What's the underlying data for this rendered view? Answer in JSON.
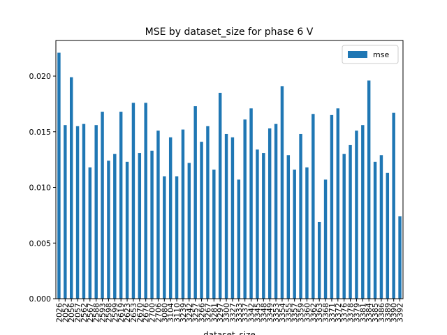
{
  "chart_data": {
    "type": "bar",
    "title": "MSE by dataset_size for phase 6 V",
    "x_label": "dataset_size",
    "categories": [
      "2026",
      "2052",
      "2056",
      "2057",
      "2562",
      "2567",
      "2588",
      "2593",
      "2598",
      "2599",
      "2619",
      "2623",
      "2653",
      "2670",
      "2676",
      "2700",
      "2706",
      "3080",
      "3104",
      "3110",
      "3239",
      "3242",
      "3257",
      "3266",
      "3267",
      "3281",
      "3297",
      "3300",
      "3327",
      "3333",
      "3337",
      "3342",
      "3345",
      "3348",
      "3349",
      "3353",
      "3354",
      "3355",
      "3357",
      "3359",
      "3360",
      "3362",
      "3363",
      "3368",
      "3371",
      "3372",
      "3376",
      "3378",
      "3379",
      "3381",
      "3384",
      "3385",
      "3386",
      "3389",
      "3390",
      "3392"
    ],
    "series": [
      {
        "name": "mse",
        "color": "#1f77b4",
        "values": [
          0.0221,
          0.0156,
          0.0199,
          0.0155,
          0.0157,
          0.0118,
          0.0156,
          0.0168,
          0.0124,
          0.013,
          0.0168,
          0.0123,
          0.0176,
          0.0131,
          0.0176,
          0.0133,
          0.0151,
          0.011,
          0.0145,
          0.011,
          0.0152,
          0.0122,
          0.0173,
          0.0141,
          0.0155,
          0.0116,
          0.0185,
          0.0148,
          0.0145,
          0.0107,
          0.0161,
          0.0171,
          0.0134,
          0.0131,
          0.0153,
          0.0157,
          0.0191,
          0.0129,
          0.0116,
          0.0148,
          0.0118,
          0.0166,
          0.0069,
          0.0107,
          0.0165,
          0.0171,
          0.013,
          0.0138,
          0.0151,
          0.0156,
          0.0196,
          0.0123,
          0.0129,
          0.0113,
          0.0167,
          0.0074
        ]
      }
    ],
    "ylim": [
      0,
      0.0232
    ],
    "yticks": [
      {
        "value": 0,
        "label": "0.000"
      },
      {
        "value": 0.005,
        "label": "0.005"
      },
      {
        "value": 0.01,
        "label": "0.010"
      },
      {
        "value": 0.015,
        "label": "0.015"
      },
      {
        "value": 0.02,
        "label": "0.020"
      }
    ],
    "legend": "upper right"
  }
}
